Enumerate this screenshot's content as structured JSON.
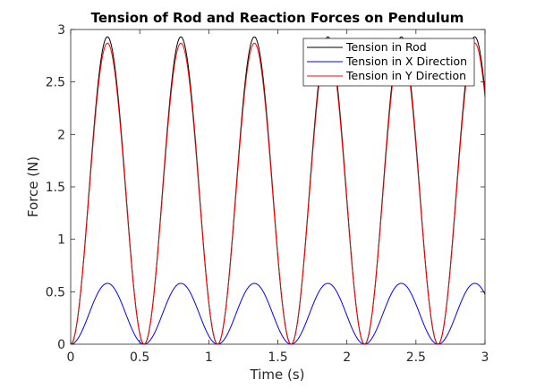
{
  "chart_data": {
    "type": "line",
    "title": "Tension of Rod and Reaction Forces on Pendulum",
    "xlabel": "Time (s)",
    "ylabel": "Force (N)",
    "xlim": [
      0,
      3
    ],
    "ylim": [
      0,
      3
    ],
    "xticks": [
      0,
      0.5,
      1,
      1.5,
      2,
      2.5,
      3
    ],
    "xtick_labels": [
      "0",
      "0.5",
      "1",
      "1.5",
      "2",
      "2.5",
      "3"
    ],
    "yticks": [
      0,
      0.5,
      1,
      1.5,
      2,
      2.5,
      3
    ],
    "ytick_labels": [
      "0",
      "0.5",
      "1",
      "1.5",
      "2",
      "2.5",
      "3"
    ],
    "grid": false,
    "legend_position": "top-right",
    "period": 0.532,
    "series": [
      {
        "name": "Tension in Rod",
        "color": "#000000",
        "peak": 2.93,
        "x": [
          0,
          0.04,
          0.08,
          0.12,
          0.16,
          0.2,
          0.24,
          0.266,
          0.29,
          0.33,
          0.37,
          0.41,
          0.45,
          0.49,
          0.532
        ],
        "y": [
          0,
          0.16,
          0.6,
          1.24,
          1.93,
          2.52,
          2.87,
          2.93,
          2.87,
          2.52,
          1.93,
          1.24,
          0.6,
          0.16,
          0
        ]
      },
      {
        "name": "Tension in X Direction",
        "color": "#0000ff",
        "peak": 0.58,
        "x": [
          0,
          0.04,
          0.08,
          0.12,
          0.16,
          0.2,
          0.24,
          0.266,
          0.29,
          0.33,
          0.37,
          0.41,
          0.45,
          0.49,
          0.532
        ],
        "y": [
          0,
          0.03,
          0.12,
          0.25,
          0.38,
          0.5,
          0.57,
          0.58,
          0.57,
          0.5,
          0.38,
          0.25,
          0.12,
          0.03,
          0
        ]
      },
      {
        "name": "Tension in Y Direction",
        "color": "#ff0000",
        "peak": 2.87,
        "x": [
          0,
          0.04,
          0.08,
          0.12,
          0.16,
          0.2,
          0.24,
          0.266,
          0.29,
          0.33,
          0.37,
          0.41,
          0.45,
          0.49,
          0.532
        ],
        "y": [
          0,
          0.15,
          0.59,
          1.22,
          1.89,
          2.47,
          2.81,
          2.87,
          2.81,
          2.47,
          1.89,
          1.22,
          0.59,
          0.15,
          0
        ]
      }
    ]
  }
}
